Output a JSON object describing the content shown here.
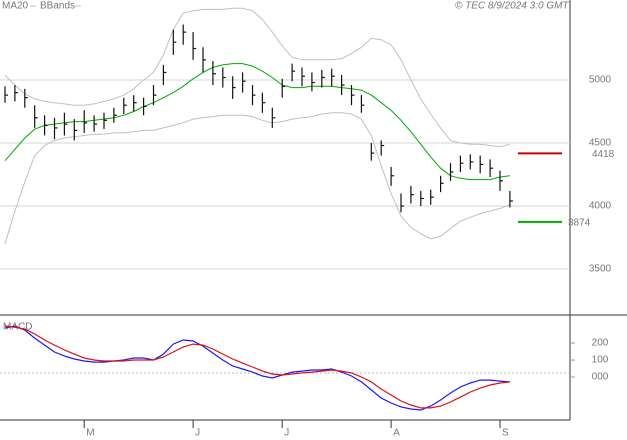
{
  "chart_data": [
    {
      "type": "ohlc",
      "source": "© TEC 8/9/2024 3:0 GMT",
      "ylim": [
        3135,
        5635
      ],
      "yticks": [
        3500,
        4000,
        4500,
        5000
      ],
      "grid": true,
      "bar_color": "#111111",
      "high": [
        4950,
        4960,
        4930,
        4800,
        4720,
        4700,
        4740,
        4690,
        4760,
        4720,
        4740,
        4780,
        4860,
        4880,
        4860,
        4960,
        5120,
        5400,
        5440,
        5380,
        5260,
        5150,
        5100,
        5030,
        5060,
        4960,
        4900,
        4780,
        5010,
        5130,
        5100,
        5060,
        5080,
        5090,
        5040,
        4960,
        4880,
        4500,
        4520,
        4310,
        4100,
        4160,
        4120,
        4130,
        4240,
        4340,
        4400,
        4410,
        4400,
        4370,
        4280,
        4120
      ],
      "low": [
        4820,
        4830,
        4780,
        4620,
        4560,
        4530,
        4560,
        4520,
        4580,
        4590,
        4610,
        4660,
        4730,
        4750,
        4720,
        4800,
        4960,
        5200,
        5280,
        5160,
        5060,
        4960,
        4940,
        4850,
        4900,
        4800,
        4740,
        4620,
        4860,
        4990,
        4950,
        4910,
        4940,
        4950,
        4880,
        4800,
        4740,
        4360,
        4400,
        4160,
        3950,
        4020,
        4000,
        4010,
        4110,
        4200,
        4270,
        4290,
        4260,
        4230,
        4120,
        3990
      ],
      "close": [
        4880,
        4900,
        4860,
        4700,
        4640,
        4620,
        4650,
        4600,
        4660,
        4650,
        4680,
        4720,
        4800,
        4820,
        4790,
        4880,
        5060,
        5300,
        5380,
        5250,
        5160,
        5050,
        5020,
        4940,
        4990,
        4880,
        4820,
        4700,
        4950,
        5070,
        5030,
        4980,
        5020,
        5030,
        4960,
        4880,
        4800,
        4420,
        4480,
        4240,
        4000,
        4090,
        4060,
        4070,
        4180,
        4270,
        4340,
        4350,
        4330,
        4300,
        4200,
        4040
      ],
      "series": [
        {
          "name": "MA20",
          "color": "#00aa00",
          "values": [
            4360,
            4450,
            4540,
            4610,
            4640,
            4650,
            4660,
            4670,
            4670,
            4680,
            4690,
            4700,
            4720,
            4750,
            4790,
            4820,
            4860,
            4900,
            4950,
            5010,
            5060,
            5100,
            5120,
            5130,
            5130,
            5110,
            5070,
            5020,
            4960,
            4940,
            4940,
            4950,
            4950,
            4950,
            4940,
            4930,
            4920,
            4880,
            4820,
            4760,
            4680,
            4590,
            4490,
            4390,
            4300,
            4240,
            4220,
            4210,
            4210,
            4210,
            4230,
            4240
          ]
        },
        {
          "name": "BBands",
          "color": "#c0c0c0",
          "upper": [
            5040,
            4960,
            4890,
            4850,
            4830,
            4820,
            4810,
            4800,
            4800,
            4810,
            4830,
            4850,
            4880,
            4930,
            5000,
            5060,
            5200,
            5400,
            5530,
            5550,
            5560,
            5560,
            5560,
            5570,
            5570,
            5550,
            5480,
            5380,
            5270,
            5180,
            5160,
            5160,
            5160,
            5160,
            5170,
            5210,
            5260,
            5330,
            5320,
            5280,
            5160,
            5000,
            4850,
            4730,
            4620,
            4520,
            4500,
            4490,
            4490,
            4480,
            4470,
            4490
          ],
          "lower": [
            3700,
            3960,
            4190,
            4400,
            4480,
            4520,
            4540,
            4550,
            4560,
            4570,
            4570,
            4580,
            4580,
            4590,
            4600,
            4600,
            4620,
            4640,
            4660,
            4690,
            4700,
            4710,
            4720,
            4720,
            4720,
            4710,
            4680,
            4660,
            4670,
            4690,
            4700,
            4710,
            4730,
            4740,
            4740,
            4730,
            4690,
            4560,
            4320,
            4100,
            3920,
            3830,
            3780,
            3740,
            3760,
            3820,
            3880,
            3910,
            3940,
            3960,
            3980,
            4010
          ]
        }
      ],
      "levels": [
        {
          "value": 4418,
          "color": "#cc0000"
        },
        {
          "value": 3874,
          "color": "#00aa00"
        }
      ]
    },
    {
      "type": "line",
      "title": "MACD",
      "ylim": [
        -253,
        365
      ],
      "yticks": [
        200,
        100,
        {
          "value": 0,
          "label": "000"
        }
      ],
      "categories": [
        null,
        null,
        null,
        null,
        null,
        null,
        null,
        null,
        "M",
        null,
        null,
        null,
        null,
        null,
        null,
        null,
        null,
        null,
        null,
        "J",
        null,
        null,
        null,
        null,
        null,
        null,
        null,
        null,
        "J",
        null,
        null,
        null,
        null,
        null,
        null,
        null,
        null,
        null,
        null,
        "A",
        null,
        null,
        null,
        null,
        null,
        null,
        null,
        null,
        null,
        null,
        "S",
        null
      ],
      "series": [
        {
          "color": "#1a1aff",
          "values": [
            288,
            300,
            276,
            229,
            188,
            147,
            124,
            106,
            94,
            88,
            88,
            94,
            100,
            112,
            112,
            100,
            135,
            194,
            218,
            212,
            182,
            141,
            100,
            65,
            47,
            29,
            6,
            -6,
            12,
            29,
            35,
            41,
            41,
            47,
            29,
            6,
            -29,
            -76,
            -124,
            -153,
            -176,
            -188,
            -194,
            -171,
            -135,
            -94,
            -59,
            -35,
            -18,
            -18,
            -24,
            -29
          ]
        },
        {
          "color": "#dd1111",
          "values": [
            300,
            294,
            282,
            253,
            218,
            188,
            159,
            135,
            112,
            100,
            94,
            94,
            94,
            100,
            100,
            100,
            118,
            147,
            176,
            194,
            188,
            165,
            135,
            106,
            82,
            59,
            35,
            18,
            12,
            18,
            24,
            29,
            35,
            41,
            35,
            24,
            0,
            -29,
            -71,
            -106,
            -141,
            -165,
            -182,
            -182,
            -171,
            -147,
            -118,
            -88,
            -65,
            -47,
            -35,
            -29
          ]
        }
      ]
    }
  ]
}
